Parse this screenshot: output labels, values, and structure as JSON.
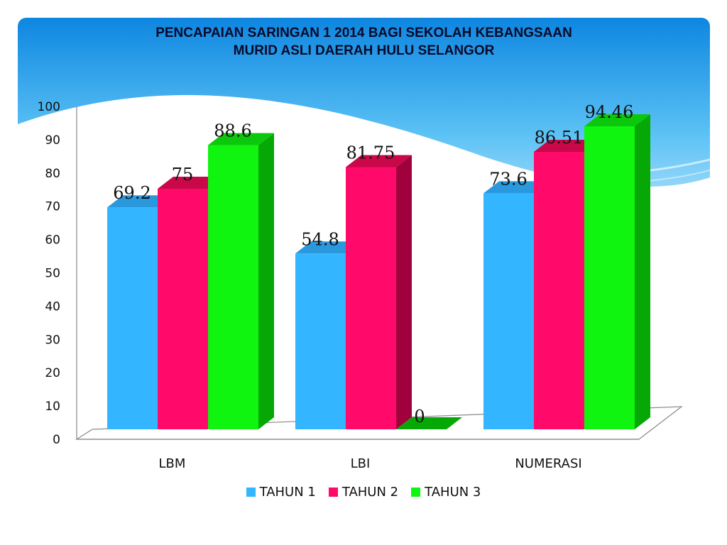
{
  "colors": {
    "series": [
      "#33b5ff",
      "#ff0a6a",
      "#10f510"
    ],
    "sides": [
      "#1f86c8",
      "#a0003c",
      "#06a806"
    ],
    "tops": [
      "#2a98dd",
      "#c80848",
      "#0cc80c"
    ],
    "background_top": "#0e86e0",
    "background_light": "#bfe6fb"
  },
  "chart_data": {
    "type": "bar",
    "title_lines": [
      "PENCAPAIAN SARINGAN  1 2014 BAGI SEKOLAH  KEBANGSAAN",
      "MURID ASLI DAERAH HULU SELANGOR"
    ],
    "categories": [
      "LBM",
      "LBI",
      "NUMERASI"
    ],
    "series": [
      {
        "name": "TAHUN 1",
        "values": [
          69.2,
          54.8,
          73.6
        ],
        "labels": [
          "69.2",
          "54.8",
          "73.6"
        ]
      },
      {
        "name": "TAHUN 2",
        "values": [
          75,
          81.75,
          86.51
        ],
        "labels": [
          "75",
          "81.75",
          "86.51"
        ]
      },
      {
        "name": "TAHUN 3",
        "values": [
          88.6,
          0,
          94.46
        ],
        "labels": [
          "88.6",
          "0",
          "94.46"
        ]
      }
    ],
    "yticks": [
      "0",
      "10",
      "20",
      "30",
      "40",
      "50",
      "60",
      "70",
      "80",
      "90",
      "100"
    ],
    "ylim": [
      0,
      100
    ],
    "xlabel": "",
    "ylabel": "",
    "legend_position": "bottom",
    "style": "3d-clustered-column"
  }
}
